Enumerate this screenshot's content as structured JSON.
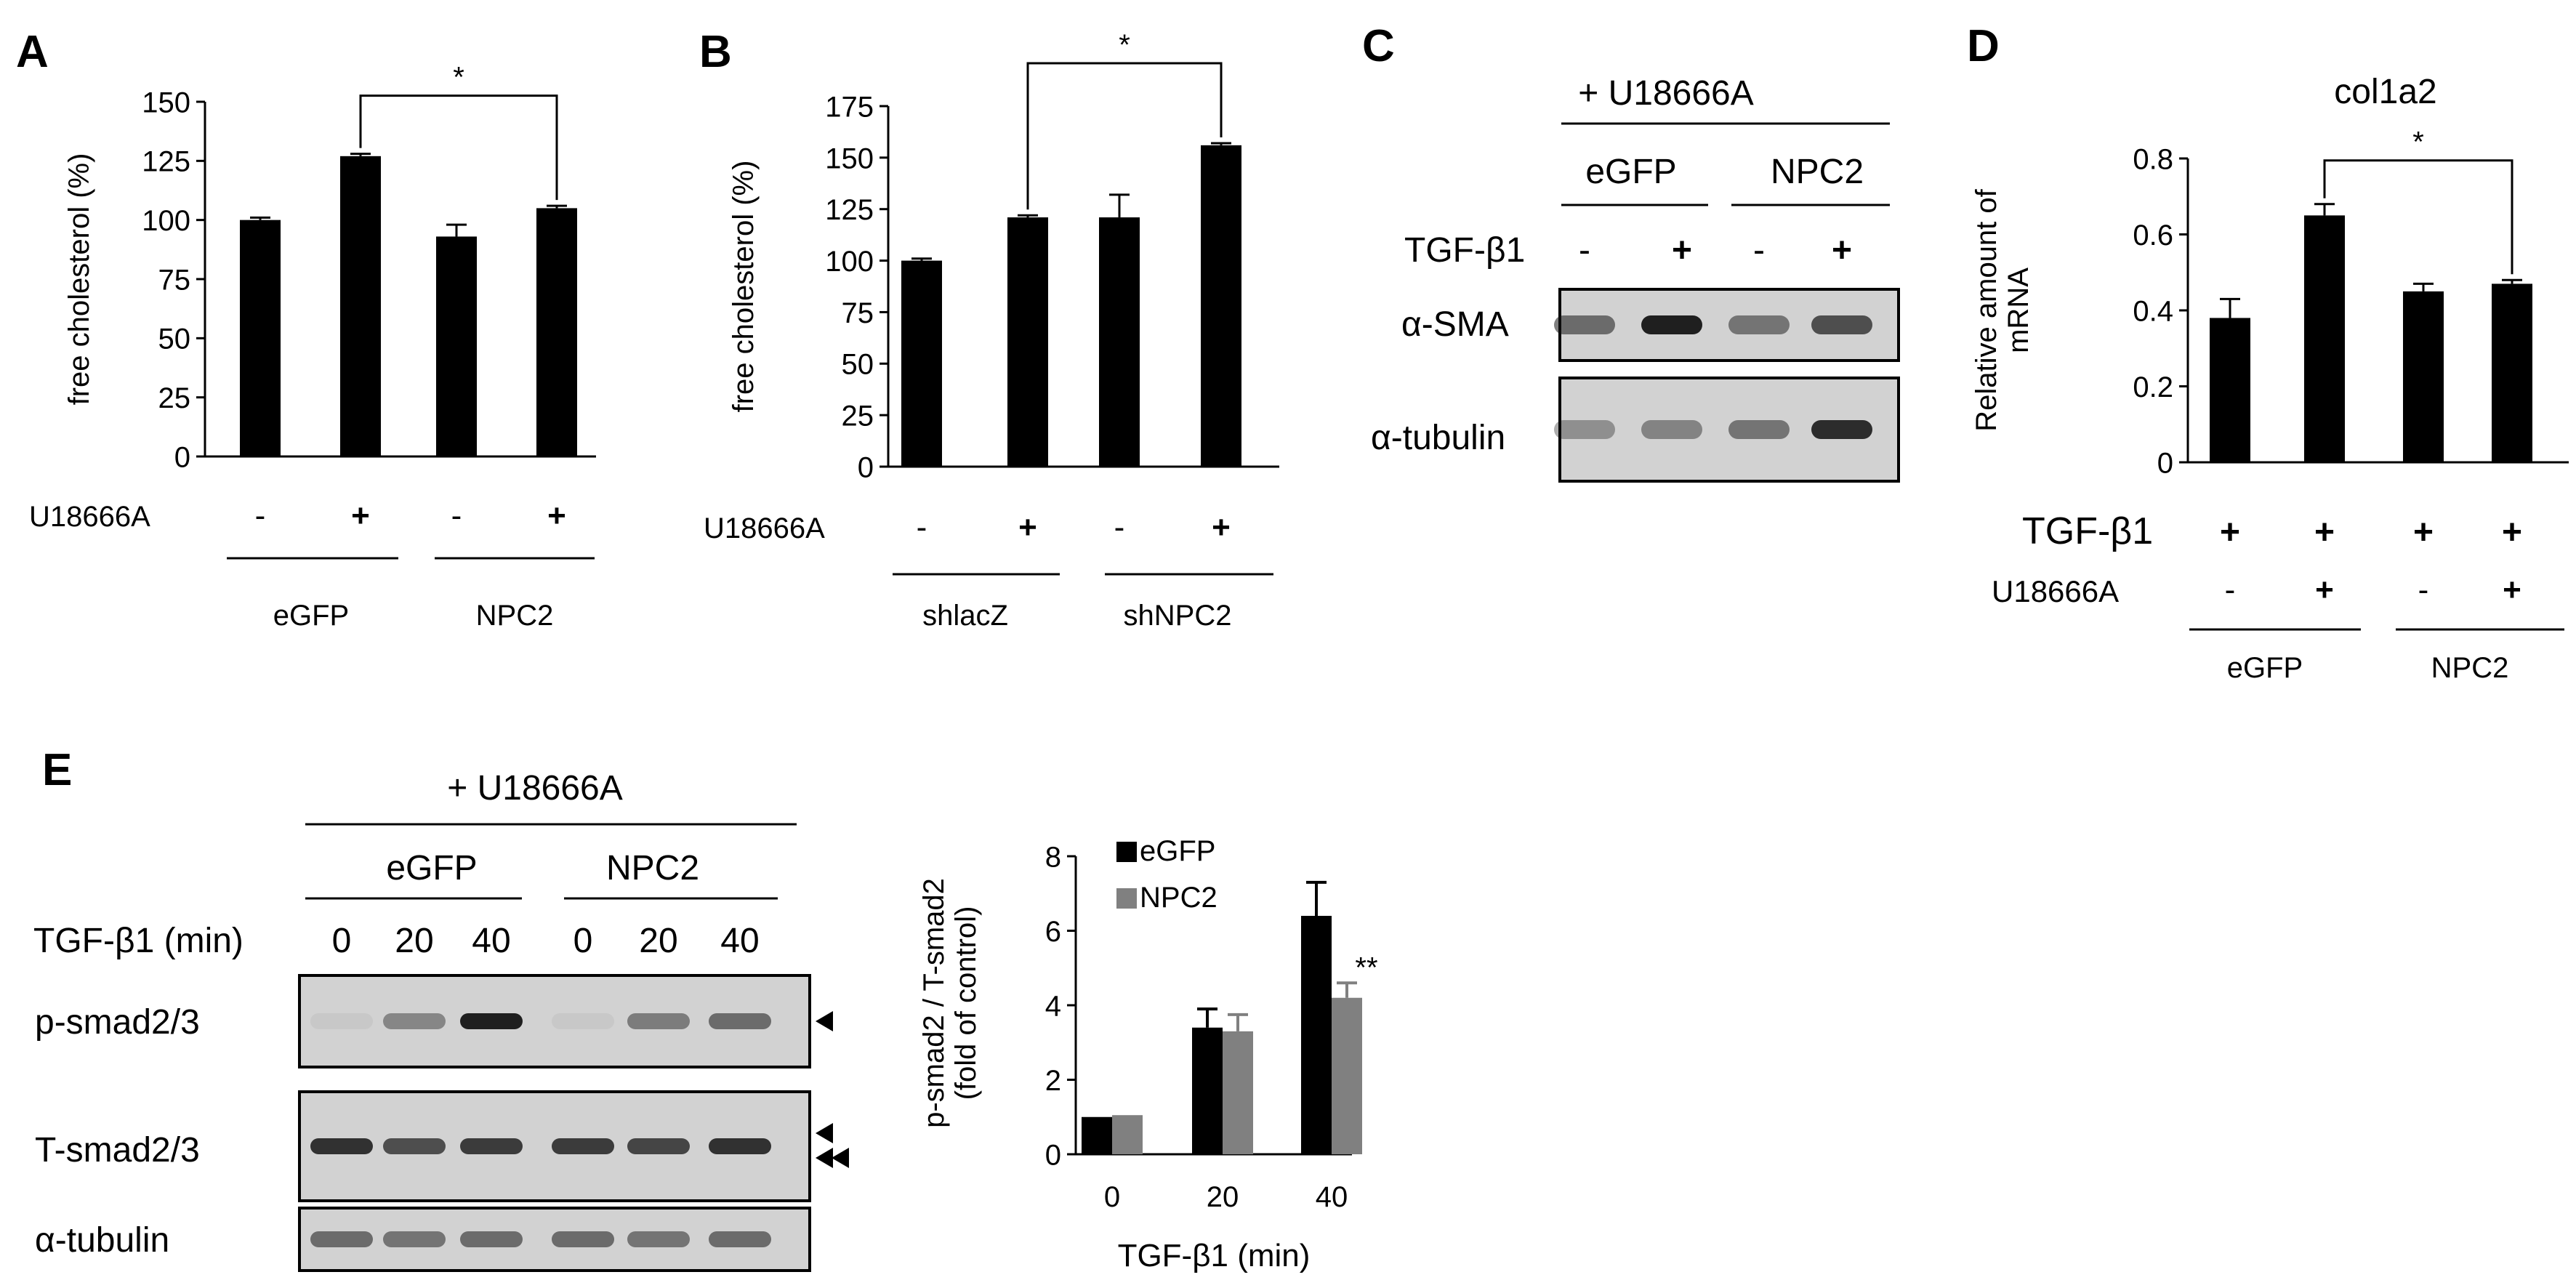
{
  "colors": {
    "bar_primary": "#000000",
    "bar_secondary": "#808080",
    "blot_bg": "#d2d2d2",
    "band": "#151515",
    "text": "#000000"
  },
  "panels": {
    "A": {
      "letter": "A",
      "treatment_label": "U18666A",
      "signs": [
        "-",
        "+",
        "-",
        "+"
      ],
      "groups": [
        "eGFP",
        "NPC2"
      ],
      "significance": "*"
    },
    "B": {
      "letter": "B",
      "treatment_label": "U18666A",
      "signs": [
        "-",
        "+",
        "-",
        "+"
      ],
      "groups": [
        "shlacZ",
        "shNPC2"
      ],
      "significance": "*"
    },
    "C": {
      "letter": "C",
      "top_label": "+ U18666A",
      "groups": [
        "eGFP",
        "NPC2"
      ],
      "treatment_label": "TGF-β1",
      "signs": [
        "-",
        "+",
        "-",
        "+"
      ],
      "rows": [
        {
          "label": "α-SMA",
          "intensity": [
            0.55,
            0.95,
            0.5,
            0.7
          ]
        },
        {
          "label": "α-tubulin",
          "intensity": [
            0.35,
            0.42,
            0.5,
            0.88
          ]
        }
      ]
    },
    "D": {
      "letter": "D",
      "treatment_label_1": "TGF-β1",
      "signs_1": [
        "+",
        "+",
        "+",
        "+"
      ],
      "treatment_label_2": "U18666A",
      "signs_2": [
        "-",
        "+",
        "-",
        "+"
      ],
      "groups": [
        "eGFP",
        "NPC2"
      ],
      "significance": "*"
    },
    "E": {
      "letter": "E",
      "top_label": "+ U18666A",
      "groups": [
        "eGFP",
        "NPC2"
      ],
      "time_label": "TGF-β1 (min)",
      "times": [
        "0",
        "20",
        "40",
        "0",
        "20",
        "40"
      ],
      "rows": [
        {
          "label": "p-smad2/3",
          "intensity": [
            0.05,
            0.4,
            0.95,
            0.05,
            0.45,
            0.55
          ],
          "arrows": 1
        },
        {
          "label": "T-smad2/3",
          "intensity": [
            0.85,
            0.7,
            0.8,
            0.8,
            0.75,
            0.85
          ],
          "arrows": 2
        },
        {
          "label": "α-tubulin",
          "intensity": [
            0.55,
            0.5,
            0.55,
            0.55,
            0.5,
            0.55
          ],
          "arrows": 0
        }
      ],
      "significance": "**"
    }
  },
  "chart_data": [
    {
      "panel": "A",
      "type": "bar",
      "categories": [
        "-",
        "+",
        "-",
        "+"
      ],
      "values": [
        100,
        127,
        93,
        105
      ],
      "errors": [
        1,
        1,
        5,
        1
      ],
      "title": "",
      "xlabel": "",
      "ylabel": "free cholesterol (%)",
      "ylim": [
        0,
        150
      ],
      "yticks": [
        0,
        25,
        50,
        75,
        100,
        125,
        150
      ],
      "significance": [
        {
          "from": 1,
          "to": 3,
          "label": "*"
        }
      ]
    },
    {
      "panel": "B",
      "type": "bar",
      "categories": [
        "-",
        "+",
        "-",
        "+"
      ],
      "values": [
        100,
        121,
        121,
        156
      ],
      "errors": [
        1,
        1,
        11,
        1
      ],
      "title": "",
      "xlabel": "",
      "ylabel": "free cholesterol (%)",
      "ylim": [
        0,
        175
      ],
      "yticks": [
        0,
        25,
        50,
        75,
        100,
        125,
        150,
        175
      ],
      "significance": [
        {
          "from": 1,
          "to": 3,
          "label": "*"
        }
      ]
    },
    {
      "panel": "D",
      "type": "bar",
      "categories": [
        "-",
        "+",
        "-",
        "+"
      ],
      "values": [
        0.38,
        0.65,
        0.45,
        0.47
      ],
      "errors": [
        0.05,
        0.03,
        0.02,
        0.01
      ],
      "title": "col1a2",
      "xlabel": "",
      "ylabel": "Relative amount of mRNA",
      "ylim": [
        0,
        0.8
      ],
      "yticks": [
        "0",
        "0.2",
        "0.4",
        "0.6",
        "0.8"
      ],
      "significance": [
        {
          "from": 1,
          "to": 3,
          "label": "*"
        }
      ]
    },
    {
      "panel": "E",
      "type": "bar",
      "categories": [
        "0",
        "20",
        "40"
      ],
      "series": [
        {
          "name": "eGFP",
          "values": [
            1.0,
            3.4,
            6.4
          ],
          "errors": [
            0.02,
            0.5,
            0.9
          ]
        },
        {
          "name": "NPC2",
          "values": [
            1.05,
            3.3,
            4.2
          ],
          "errors": [
            0.02,
            0.45,
            0.4
          ]
        }
      ],
      "title": "",
      "xlabel": "TGF-β1 (min)",
      "ylabel": "p-smad2 / T-smad2 (fold of control)",
      "ylim": [
        0,
        8
      ],
      "yticks": [
        0,
        2,
        4,
        6,
        8
      ],
      "legend": "top-left",
      "annotations": [
        {
          "category": "40",
          "series": "NPC2",
          "label": "**"
        }
      ]
    }
  ]
}
